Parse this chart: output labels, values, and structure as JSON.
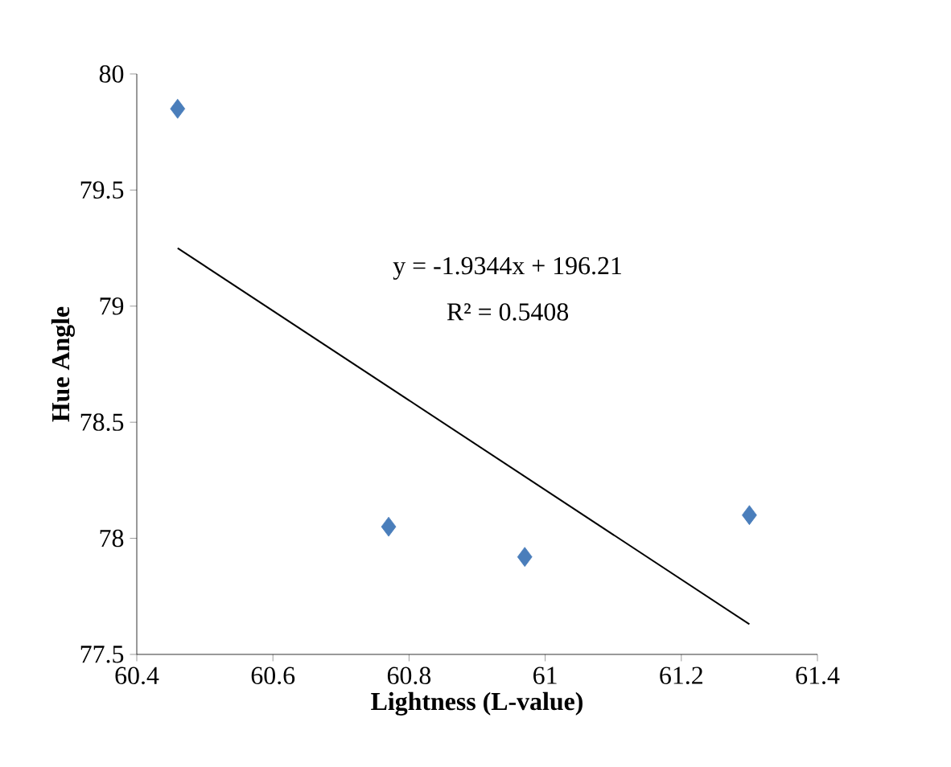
{
  "chart_data": {
    "type": "scatter",
    "xlabel": "Lightness (L-value)",
    "ylabel": "Hue Angle",
    "xlim": [
      60.4,
      61.4
    ],
    "ylim": [
      77.5,
      80
    ],
    "xticks": [
      60.4,
      60.6,
      60.8,
      61,
      61.2,
      61.4
    ],
    "yticks": [
      77.5,
      78,
      78.5,
      79,
      79.5,
      80
    ],
    "grid": false,
    "series": [
      {
        "type": "scatter",
        "marker": "diamond",
        "color": "#4a7ebb",
        "x": [
          60.46,
          60.77,
          60.97,
          61.3
        ],
        "values": [
          79.85,
          78.05,
          77.92,
          78.1
        ]
      },
      {
        "type": "line",
        "marker": "none",
        "color": "#000000",
        "x": [
          60.46,
          61.3
        ],
        "values": [
          79.25,
          77.63
        ]
      }
    ],
    "annotations": [
      "y = -1.9344x + 196.21",
      "R² = 0.5408"
    ]
  }
}
